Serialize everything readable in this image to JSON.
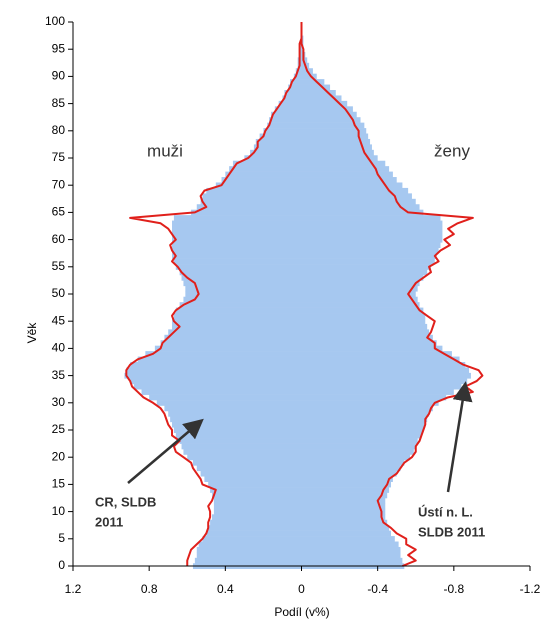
{
  "chart_data": {
    "type": "pyramid",
    "x_label": "Podíl (v%)",
    "y_label": "Věk",
    "annotations": [
      {
        "text": "muži"
      },
      {
        "text": "ženy"
      },
      {
        "lines": [
          "CR, SLDB",
          "2011"
        ]
      },
      {
        "lines": [
          "Ústí n. L.",
          "SLDB 2011"
        ]
      }
    ],
    "xlim": [
      1.2,
      -1.2
    ],
    "xticks": [
      1.2,
      0.8,
      0.4,
      0,
      -0.4,
      -0.8,
      -1.2
    ],
    "ylim": [
      0,
      100
    ],
    "yticks": [
      0,
      5,
      10,
      15,
      20,
      25,
      30,
      35,
      40,
      45,
      50,
      55,
      60,
      65,
      70,
      75,
      80,
      85,
      90,
      95,
      100
    ],
    "y": [
      0,
      1,
      2,
      3,
      4,
      5,
      6,
      7,
      8,
      9,
      10,
      11,
      12,
      13,
      14,
      15,
      16,
      17,
      18,
      19,
      20,
      21,
      22,
      23,
      24,
      25,
      26,
      27,
      28,
      29,
      30,
      31,
      32,
      33,
      34,
      35,
      36,
      37,
      38,
      39,
      40,
      41,
      42,
      43,
      44,
      45,
      46,
      47,
      48,
      49,
      50,
      51,
      52,
      53,
      54,
      55,
      56,
      57,
      58,
      59,
      60,
      61,
      62,
      63,
      64,
      65,
      66,
      67,
      68,
      69,
      70,
      71,
      72,
      73,
      74,
      75,
      76,
      77,
      78,
      79,
      80,
      81,
      82,
      83,
      84,
      85,
      86,
      87,
      88,
      89,
      90,
      91,
      92,
      93,
      94,
      95,
      96,
      97,
      98,
      99,
      100
    ],
    "series": [
      {
        "style": "bar",
        "color": "#a6c8f0",
        "values": [
          0.57,
          0.56,
          0.55,
          0.55,
          0.54,
          0.52,
          0.5,
          0.49,
          0.48,
          0.47,
          0.46,
          0.46,
          0.46,
          0.47,
          0.48,
          0.49,
          0.51,
          0.53,
          0.55,
          0.57,
          0.6,
          0.62,
          0.63,
          0.64,
          0.66,
          0.67,
          0.68,
          0.69,
          0.7,
          0.72,
          0.76,
          0.8,
          0.84,
          0.88,
          0.9,
          0.93,
          0.92,
          0.9,
          0.86,
          0.82,
          0.77,
          0.74,
          0.72,
          0.7,
          0.68,
          0.68,
          0.67,
          0.66,
          0.64,
          0.62,
          0.61,
          0.61,
          0.62,
          0.63,
          0.64,
          0.66,
          0.67,
          0.68,
          0.68,
          0.68,
          0.68,
          0.68,
          0.68,
          0.68,
          0.67,
          0.58,
          0.55,
          0.53,
          0.52,
          0.5,
          0.45,
          0.42,
          0.4,
          0.38,
          0.36,
          0.3,
          0.27,
          0.25,
          0.24,
          0.22,
          0.2,
          0.18,
          0.17,
          0.16,
          0.14,
          0.12,
          0.1,
          0.09,
          0.07,
          0.06,
          0.04,
          0.03,
          0.02,
          0.02,
          0.01,
          0.01,
          0.01,
          0,
          0,
          0,
          0
        ]
      },
      {
        "style": "bar",
        "color": "#a6c8f0",
        "values": [
          -0.54,
          -0.53,
          -0.52,
          -0.52,
          -0.51,
          -0.49,
          -0.47,
          -0.46,
          -0.45,
          -0.44,
          -0.44,
          -0.44,
          -0.44,
          -0.45,
          -0.46,
          -0.47,
          -0.48,
          -0.5,
          -0.52,
          -0.54,
          -0.57,
          -0.59,
          -0.6,
          -0.61,
          -0.63,
          -0.64,
          -0.65,
          -0.66,
          -0.67,
          -0.69,
          -0.72,
          -0.76,
          -0.8,
          -0.84,
          -0.87,
          -0.89,
          -0.88,
          -0.86,
          -0.83,
          -0.79,
          -0.74,
          -0.71,
          -0.69,
          -0.67,
          -0.66,
          -0.65,
          -0.65,
          -0.64,
          -0.62,
          -0.61,
          -0.6,
          -0.61,
          -0.62,
          -0.64,
          -0.66,
          -0.68,
          -0.7,
          -0.71,
          -0.72,
          -0.73,
          -0.74,
          -0.74,
          -0.74,
          -0.74,
          -0.73,
          -0.64,
          -0.62,
          -0.6,
          -0.58,
          -0.56,
          -0.53,
          -0.5,
          -0.48,
          -0.46,
          -0.44,
          -0.4,
          -0.38,
          -0.37,
          -0.36,
          -0.35,
          -0.34,
          -0.33,
          -0.31,
          -0.29,
          -0.27,
          -0.24,
          -0.21,
          -0.18,
          -0.15,
          -0.12,
          -0.08,
          -0.06,
          -0.04,
          -0.03,
          -0.02,
          -0.01,
          -0.01,
          -0.01,
          0,
          0,
          0
        ]
      },
      {
        "style": "line",
        "color": "#e0201b",
        "values": [
          0.6,
          0.6,
          0.59,
          0.58,
          0.55,
          0.52,
          0.5,
          0.49,
          0.49,
          0.48,
          0.48,
          0.49,
          0.47,
          0.46,
          0.45,
          0.52,
          0.53,
          0.55,
          0.57,
          0.58,
          0.62,
          0.66,
          0.67,
          0.64,
          0.68,
          0.68,
          0.7,
          0.71,
          0.72,
          0.74,
          0.78,
          0.83,
          0.86,
          0.89,
          0.9,
          0.92,
          0.92,
          0.9,
          0.86,
          0.78,
          0.74,
          0.73,
          0.7,
          0.67,
          0.64,
          0.67,
          0.68,
          0.66,
          0.62,
          0.56,
          0.54,
          0.55,
          0.56,
          0.6,
          0.63,
          0.65,
          0.68,
          0.66,
          0.68,
          0.69,
          0.66,
          0.68,
          0.7,
          0.74,
          0.9,
          0.56,
          0.5,
          0.52,
          0.53,
          0.51,
          0.42,
          0.4,
          0.38,
          0.36,
          0.34,
          0.28,
          0.25,
          0.23,
          0.23,
          0.2,
          0.19,
          0.17,
          0.16,
          0.15,
          0.13,
          0.11,
          0.09,
          0.08,
          0.06,
          0.05,
          0.03,
          0.02,
          0.01,
          0.01,
          0.01,
          0.01,
          0.01,
          0,
          0,
          0,
          0
        ]
      },
      {
        "style": "line",
        "color": "#e0201b",
        "values": [
          -0.53,
          -0.6,
          -0.56,
          -0.6,
          -0.55,
          -0.55,
          -0.5,
          -0.47,
          -0.43,
          -0.42,
          -0.42,
          -0.41,
          -0.4,
          -0.42,
          -0.43,
          -0.45,
          -0.46,
          -0.5,
          -0.52,
          -0.54,
          -0.58,
          -0.6,
          -0.6,
          -0.62,
          -0.63,
          -0.64,
          -0.65,
          -0.65,
          -0.67,
          -0.68,
          -0.7,
          -0.77,
          -0.9,
          -0.86,
          -0.92,
          -0.95,
          -0.93,
          -0.85,
          -0.8,
          -0.75,
          -0.7,
          -0.7,
          -0.66,
          -0.68,
          -0.69,
          -0.7,
          -0.66,
          -0.62,
          -0.6,
          -0.58,
          -0.56,
          -0.58,
          -0.6,
          -0.64,
          -0.68,
          -0.67,
          -0.72,
          -0.7,
          -0.73,
          -0.78,
          -0.75,
          -0.8,
          -0.77,
          -0.82,
          -0.9,
          -0.56,
          -0.52,
          -0.5,
          -0.49,
          -0.46,
          -0.44,
          -0.42,
          -0.4,
          -0.39,
          -0.37,
          -0.35,
          -0.33,
          -0.32,
          -0.31,
          -0.3,
          -0.3,
          -0.28,
          -0.27,
          -0.25,
          -0.23,
          -0.2,
          -0.17,
          -0.14,
          -0.11,
          -0.08,
          -0.05,
          -0.03,
          -0.02,
          -0.01,
          -0.01,
          -0.01,
          0,
          0,
          0,
          0,
          0
        ]
      }
    ]
  }
}
